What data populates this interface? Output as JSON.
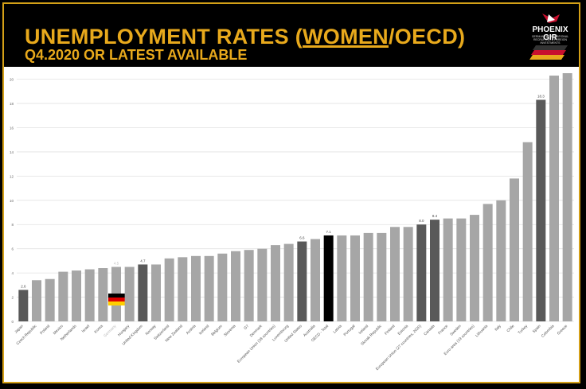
{
  "header": {
    "title_pre": "UNEMPLOYMENT RATES (",
    "title_u": "WOMEN",
    "title_post": "/OECD)",
    "subtitle": "Q4.2020 OR LATEST AVAILABLE",
    "logo_text": "PHOENIX GIR",
    "logo_sub": "GERMANY INTERNATIONAL RECRUITING & FOREIGN INVESTMENTS"
  },
  "colors": {
    "gold": "#e8a91c",
    "bar": "#a6a6a6",
    "bar_dark": "#595959",
    "bar_black": "#000000"
  },
  "chart_data": {
    "type": "bar",
    "title": "",
    "xlabel": "",
    "ylabel": "",
    "ylim": [
      0,
      20.5
    ],
    "yticks": [
      0,
      2,
      4,
      6,
      8,
      10,
      12,
      14,
      16,
      18,
      20
    ],
    "grid": true,
    "categories": [
      "Japan",
      "Czech Republic",
      "Poland",
      "Mexico",
      "Netherlands",
      "Israel",
      "Korea",
      "Germany",
      "Hungary",
      "United Kingdom",
      "Norway",
      "Switzerland",
      "New Zealand",
      "Austria",
      "Iceland",
      "Belgium",
      "Slovenia",
      "G7",
      "Denmark",
      "European Union (28 countries)",
      "Luxembourg",
      "United States",
      "Australia",
      "OECD - Total",
      "Latvia",
      "Portugal",
      "Ireland",
      "Slovak Republic",
      "Finland",
      "Estonia",
      "European Union (27 countries, 2020)",
      "Canada",
      "France",
      "Sweden",
      "Euro area (19 countries)",
      "Lithuania",
      "Italy",
      "Chile",
      "Turkey",
      "Spain",
      "Colombia",
      "Greece"
    ],
    "values": [
      2.6,
      3.4,
      3.5,
      4.1,
      4.2,
      4.3,
      4.4,
      4.5,
      4.5,
      4.7,
      4.7,
      5.2,
      5.3,
      5.4,
      5.4,
      5.6,
      5.8,
      5.9,
      6.0,
      6.3,
      6.4,
      6.6,
      6.8,
      7.1,
      7.1,
      7.1,
      7.3,
      7.3,
      7.8,
      7.8,
      8.0,
      8.4,
      8.5,
      8.5,
      8.8,
      9.7,
      10.0,
      11.8,
      14.8,
      18.3,
      20.3,
      20.5
    ],
    "data_labels": [
      "2.6",
      "",
      "",
      "",
      "",
      "",
      "",
      "4.5",
      "",
      "4.7",
      "",
      "",
      "",
      "",
      "",
      "",
      "",
      "",
      "",
      "",
      "",
      "6.6",
      "",
      "7.1",
      "",
      "",
      "",
      "",
      "",
      "",
      "8.0",
      "8.4",
      "",
      "",
      "",
      "",
      "",
      "",
      "",
      "18.3",
      "",
      ""
    ],
    "highlight": [
      "dark",
      "",
      "",
      "",
      "",
      "",
      "",
      "germany",
      "",
      "dark",
      "",
      "",
      "",
      "",
      "",
      "",
      "",
      "",
      "",
      "",
      "",
      "dark",
      "",
      "black",
      "",
      "",
      "",
      "",
      "",
      "",
      "dark",
      "dark",
      "",
      "",
      "",
      "",
      "",
      "",
      "",
      "dark",
      "",
      ""
    ]
  }
}
